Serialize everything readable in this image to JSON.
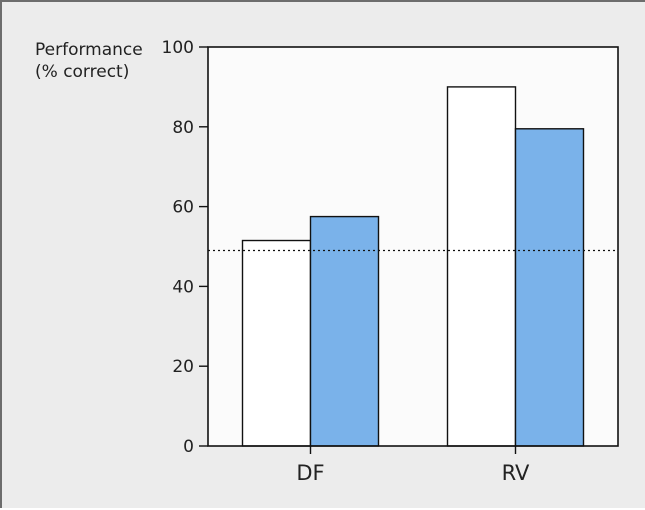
{
  "chart_data": {
    "type": "bar",
    "ylabel": [
      "Performance",
      "(% correct)"
    ],
    "categories": [
      "DF",
      "RV"
    ],
    "series": [
      {
        "values": [
          51.5,
          90
        ],
        "color": "#ffffff"
      },
      {
        "values": [
          57.5,
          79.5
        ],
        "color": "#7ab2ea"
      }
    ],
    "yticks": [
      0,
      20,
      40,
      60,
      80,
      100
    ],
    "ylim": [
      0,
      100
    ],
    "reference_line": {
      "y": 49,
      "style": "dotted"
    },
    "grid": false
  }
}
